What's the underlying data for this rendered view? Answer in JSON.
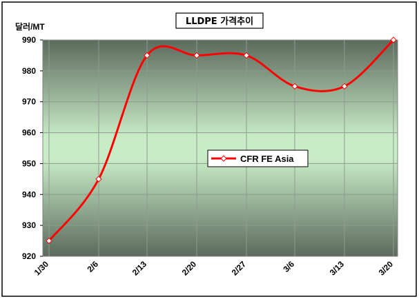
{
  "chart_data": {
    "type": "line",
    "title": "LLDPE 가격추이",
    "ylabel": "달러/MT",
    "xlabel": "",
    "categories": [
      "1/30",
      "2/6",
      "2/13",
      "2/20",
      "2/27",
      "3/6",
      "3/13",
      "3/20"
    ],
    "series": [
      {
        "name": "CFR FE Asia",
        "values": [
          925,
          945,
          985,
          985,
          985,
          975,
          975,
          990
        ],
        "color": "#ff0000",
        "marker": "diamond"
      }
    ],
    "yticks": [
      920,
      930,
      940,
      950,
      960,
      970,
      980,
      990
    ],
    "ylim": [
      920,
      990
    ],
    "smooth": true,
    "grid": "horizontal and vertical",
    "legend_position": "center-right",
    "plot_background": "gradient: light green (#bfe8c0) center fading to dark gray-green (#5a6a5c) at edges"
  }
}
